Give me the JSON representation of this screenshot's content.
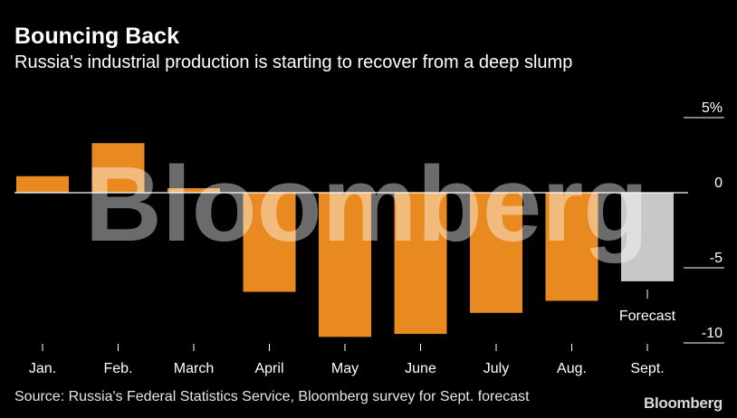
{
  "header": {
    "title": "Bouncing Back",
    "subtitle": "Russia's industrial production is starting to recover from a deep slump"
  },
  "chart_data": {
    "type": "bar",
    "categories": [
      "Jan.",
      "Feb.",
      "March",
      "April",
      "May",
      "June",
      "July",
      "Aug.",
      "Sept."
    ],
    "values": [
      1.1,
      3.3,
      0.3,
      -6.6,
      -9.6,
      -9.4,
      -8.0,
      -7.2,
      -5.9
    ],
    "forecast": [
      false,
      false,
      false,
      false,
      false,
      false,
      false,
      false,
      true
    ],
    "ylim": [
      -10.5,
      5.5
    ],
    "yticks": [
      5,
      0,
      -5,
      -10
    ],
    "ytick_labels": [
      "5%",
      "0",
      "-5",
      "-10"
    ],
    "annotation": "Forecast",
    "colors": {
      "bar": "#e98a21",
      "forecast": "#c8c8c8",
      "axis": "#ffffff",
      "background": "#000000"
    }
  },
  "watermark": "Bloomberg",
  "footer": {
    "source": "Source: Russia's Federal Statistics Service, Bloomberg survey for Sept. forecast",
    "logo": "Bloomberg"
  }
}
